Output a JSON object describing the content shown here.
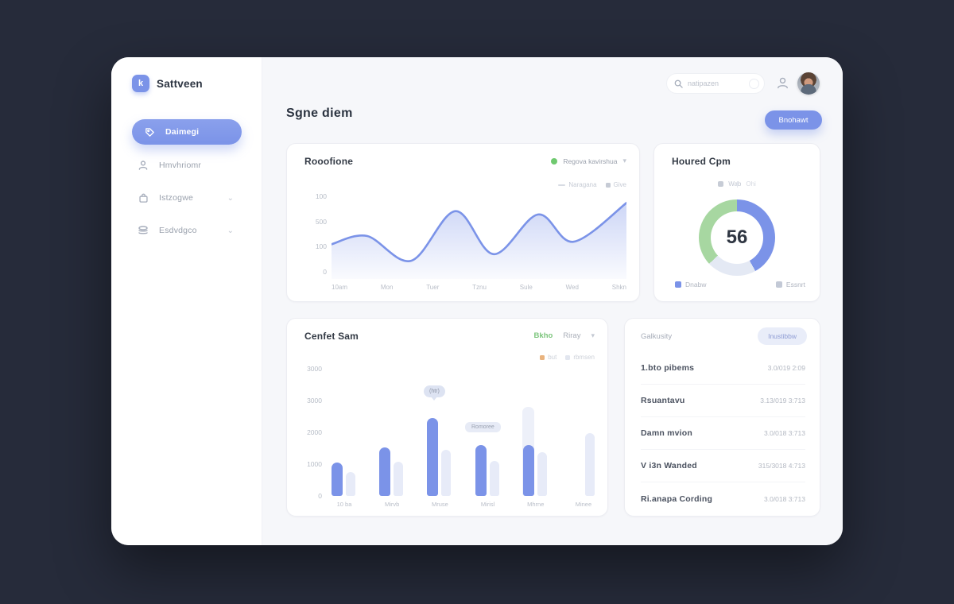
{
  "theme": {
    "background": "#262b3a",
    "accent": "#7b93e8",
    "green": "#a7d7a1",
    "lavender": "#e4e9f4",
    "orange": "#e9b37e"
  },
  "sidebar": {
    "logo": "Sattveen",
    "logo_glyph": "k",
    "items": [
      {
        "id": "daimegi",
        "label": "Daimegi",
        "icon": "tag-icon",
        "active": true,
        "chevron": false
      },
      {
        "id": "hmvhriomr",
        "label": "Hmvhriomr",
        "icon": "user-icon",
        "active": false,
        "chevron": false
      },
      {
        "id": "istzogwe",
        "label": "Istzogwe",
        "icon": "bag-icon",
        "active": false,
        "chevron": true
      },
      {
        "id": "esdvdgco",
        "label": "Esdvdgco",
        "icon": "stack-icon",
        "active": false,
        "chevron": true
      }
    ]
  },
  "topbar": {
    "search_placeholder": "natipazen"
  },
  "page": {
    "title": "Sgne diem",
    "action_label": "Bnohawt"
  },
  "table": {
    "header": "Galkusity",
    "action_label": "Inustibbw",
    "rows": [
      {
        "name": "1.bto pibems",
        "value": "3.0/019 2:09"
      },
      {
        "name": "Rsuantavu",
        "value": "3.13/019 3:713"
      },
      {
        "name": "Damn mvion",
        "value": "3.0/018 3:713"
      },
      {
        "name": "V i3n Wanded",
        "value": "315/3018 4:713"
      },
      {
        "name": "Ri.anapa Cording",
        "value": "3.0/018 3:713"
      }
    ]
  },
  "chart_data": [
    {
      "id": "line",
      "type": "area",
      "title": "Rooofione",
      "header_legend": {
        "dot_color": "#6fc96f",
        "label": "Regova kavirshua"
      },
      "sub_legend": [
        {
          "label": "Naragana",
          "marker": "line"
        },
        {
          "label": "Give",
          "marker": "square"
        }
      ],
      "y_ticks": [
        "100",
        "500",
        "100",
        "0"
      ],
      "x_ticks": [
        "10am",
        "Mon",
        "Tuer",
        "Tznu",
        "Sule",
        "Wed",
        "Shkn"
      ],
      "x": [
        0,
        12,
        27,
        42,
        55,
        70,
        82,
        100
      ],
      "y": [
        42,
        52,
        22,
        82,
        30,
        78,
        45,
        92
      ],
      "ylim": [
        0,
        100
      ],
      "grid": false,
      "line_color": "#7b93e8",
      "fill_color": "#7b93e8"
    },
    {
      "id": "donut",
      "type": "pie",
      "title": "Houred Cpm",
      "mini_legend": [
        "Wab",
        "Ohi"
      ],
      "center_value": "56",
      "slices": [
        {
          "label": "Dnabw",
          "value": 42,
          "color": "#7b93e8"
        },
        {
          "label": "",
          "value": 21,
          "color": "#e4e9f4"
        },
        {
          "label": "Essnrt",
          "value": 37,
          "color": "#a7d7a1"
        }
      ],
      "legend": [
        {
          "label": "Dnabw",
          "color": "#7b93e8"
        },
        {
          "label": "Essnrt",
          "color": "#c3c9d6"
        }
      ]
    },
    {
      "id": "bars",
      "type": "bar",
      "title": "Cenfet Sam",
      "filters": {
        "active": "Bkho",
        "inactive": "Riray"
      },
      "legend": [
        {
          "label": "but",
          "color": "#e9b37e"
        },
        {
          "label": "rbmsen",
          "color": "#e2e6ef"
        }
      ],
      "y_ticks": [
        "3000",
        "3000",
        "2000",
        "1000",
        "0"
      ],
      "categories": [
        "10 ba",
        "Mirvb",
        "Mruse",
        "Mirisl",
        "Mhrne",
        "Minee"
      ],
      "series": [
        {
          "name": "primary",
          "color": "#7b93e8",
          "values": [
            1050,
            1525,
            2450,
            1600,
            1600,
            null
          ]
        },
        {
          "name": "secondary",
          "color": "#e7ebf8",
          "values": [
            750,
            1075,
            1450,
            1100,
            1375,
            1975
          ]
        },
        {
          "name": "ghost",
          "color": "#edf0f9",
          "values": [
            null,
            null,
            null,
            null,
            2800,
            null
          ]
        }
      ],
      "ylim": [
        0,
        4050
      ],
      "grid": false,
      "legend_position": "top-right",
      "tooltip": "(htr)",
      "annotation": "Romoree"
    }
  ]
}
